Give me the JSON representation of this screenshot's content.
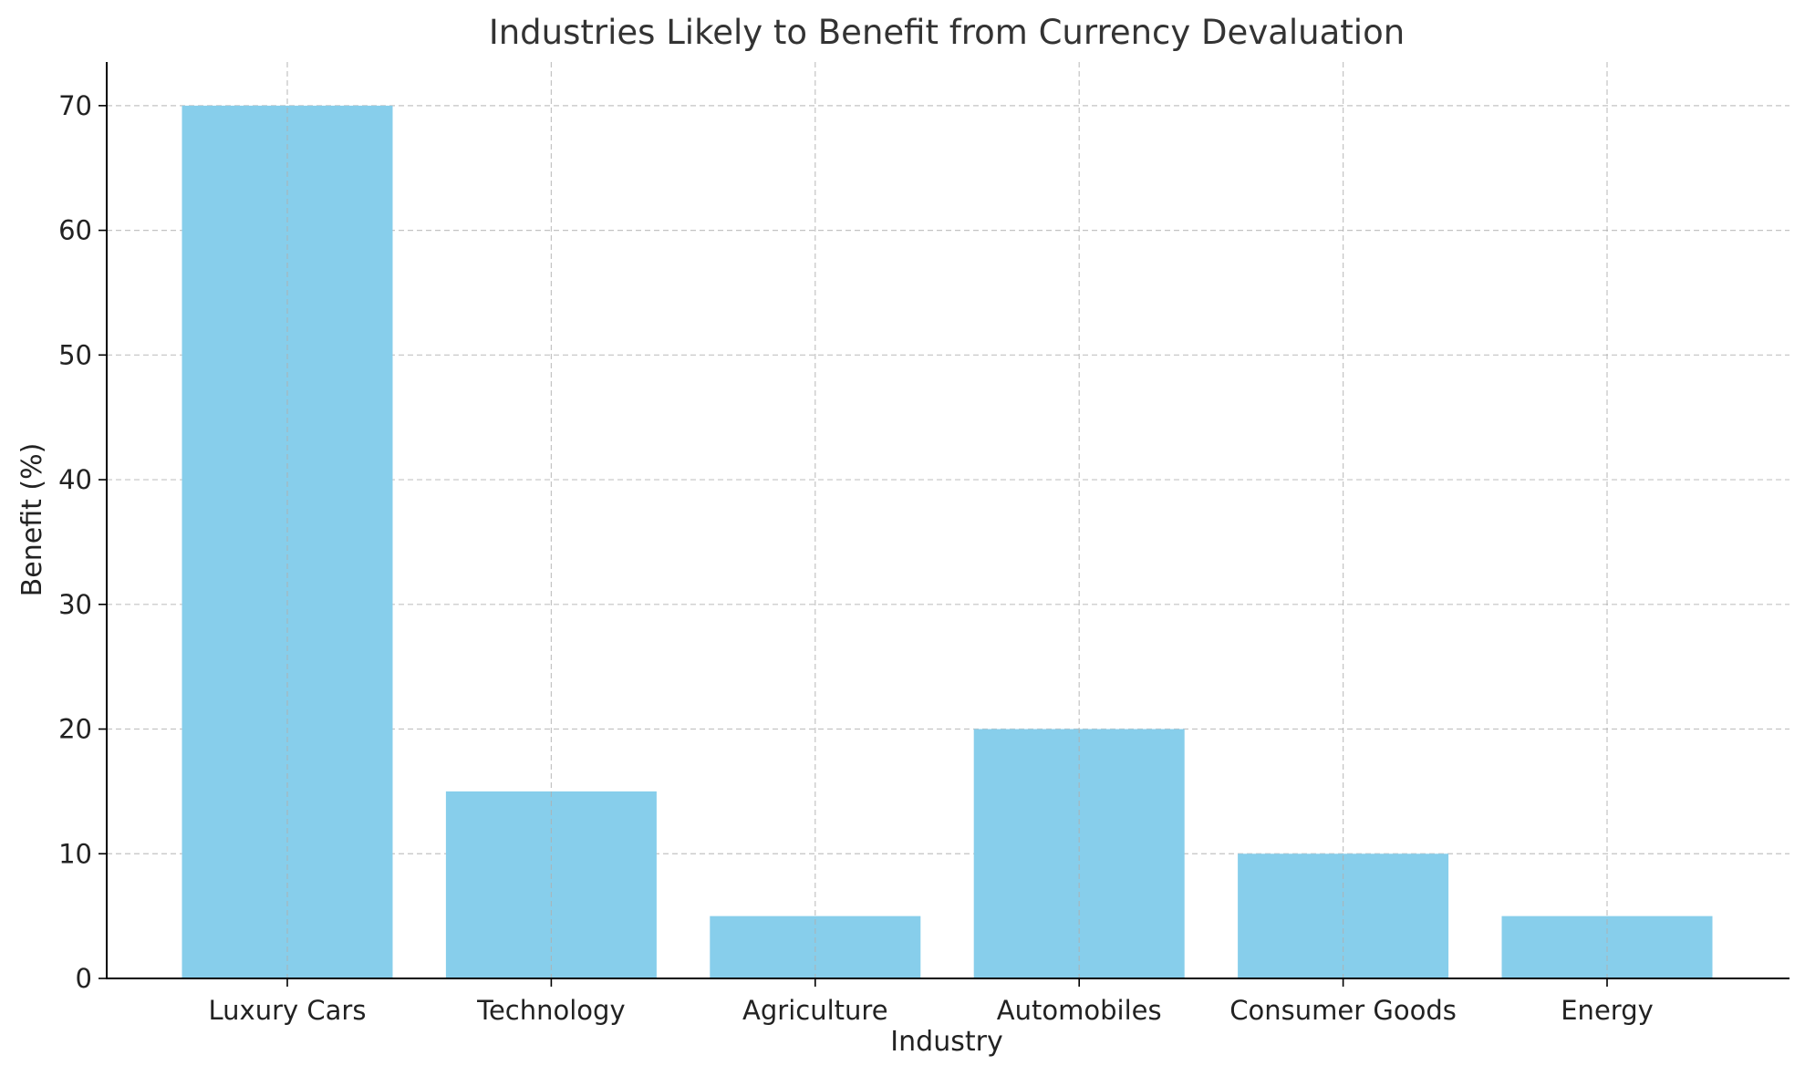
{
  "chart_data": {
    "type": "bar",
    "title": "Industries Likely to Benefit from Currency Devaluation",
    "xlabel": "Industry",
    "ylabel": "Benefit (%)",
    "categories": [
      "Luxury Cars",
      "Technology",
      "Agriculture",
      "Automobiles",
      "Consumer Goods",
      "Energy"
    ],
    "values": [
      70,
      15,
      5,
      20,
      10,
      5
    ],
    "ylim": [
      0,
      73.5
    ],
    "yticks": [
      0,
      10,
      20,
      30,
      40,
      50,
      60,
      70
    ],
    "grid": true,
    "bar_color": "#87CEEB"
  }
}
